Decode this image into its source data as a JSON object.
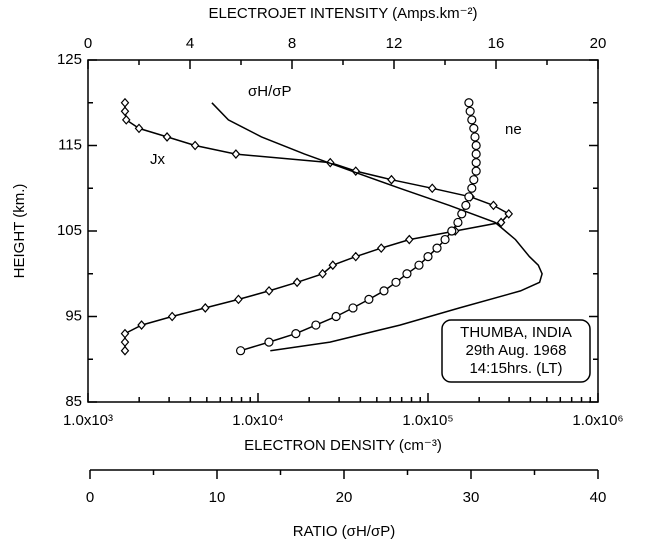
{
  "chart_data": {
    "type": "multi-axis-profile",
    "y_axis": {
      "label": "HEIGHT (km.)",
      "lim": [
        85,
        125
      ],
      "ticks": [
        85,
        95,
        105,
        115,
        125
      ],
      "minor_ticks": [
        90,
        100,
        110,
        120
      ]
    },
    "x_axes": {
      "top": {
        "label": "ELECTROJET INTENSITY (Amps.km⁻²)",
        "lim": [
          0,
          20
        ],
        "ticks": [
          0,
          4,
          8,
          12,
          16,
          20
        ],
        "minor_ticks": [
          2,
          6,
          10,
          14,
          18
        ]
      },
      "bottom": {
        "label": "ELECTRON DENSITY (cm⁻³)",
        "lim": [
          1000,
          1000000
        ],
        "log": true,
        "ticks": [
          {
            "value": 1000,
            "label": "1.0x10³"
          },
          {
            "value": 10000,
            "label": "1.0x10⁴"
          },
          {
            "value": 100000,
            "label": "1.0x10⁵"
          },
          {
            "value": 1000000,
            "label": "1.0x10⁶"
          }
        ],
        "minor_ticks": [
          2000,
          3000,
          4000,
          5000,
          6000,
          7000,
          8000,
          9000,
          20000,
          30000,
          40000,
          50000,
          60000,
          70000,
          80000,
          90000,
          200000,
          300000,
          400000,
          500000,
          600000,
          700000,
          800000,
          900000
        ]
      },
      "ratio": {
        "label": "RATIO (σH/σP)",
        "lim": [
          0,
          40
        ],
        "ticks": [
          0,
          10,
          20,
          30,
          40
        ],
        "minor_ticks": [
          5,
          15,
          25,
          35
        ]
      }
    },
    "series": [
      {
        "name": "Jx",
        "axis": "top",
        "marker": "diamond",
        "color": "#000000",
        "y": [
          120,
          119,
          118,
          117,
          116,
          115,
          114,
          113,
          112,
          111,
          110,
          109,
          108,
          107,
          106,
          105,
          104,
          103,
          102,
          101,
          100,
          99,
          98,
          97,
          96,
          95,
          94,
          93,
          92,
          91
        ],
        "values": [
          1.45,
          1.45,
          1.5,
          2.0,
          3.1,
          4.2,
          5.8,
          9.5,
          10.5,
          11.9,
          13.5,
          15.0,
          15.9,
          16.5,
          16.2,
          14.4,
          12.6,
          11.5,
          10.5,
          9.6,
          9.2,
          8.2,
          7.1,
          5.9,
          4.6,
          3.3,
          2.1,
          1.45,
          1.45,
          1.45
        ]
      },
      {
        "name": "ne",
        "axis": "bottom",
        "marker": "circle",
        "color": "#000000",
        "y": [
          120,
          119,
          118,
          117,
          116,
          115,
          114,
          113,
          112,
          111,
          110,
          109,
          108,
          107,
          106,
          105,
          104,
          103,
          102,
          101,
          100,
          99,
          98,
          97,
          96,
          95,
          94,
          93,
          92,
          91
        ],
        "values": [
          174000,
          177000,
          181000,
          186000,
          189000,
          192000,
          192000,
          192000,
          192000,
          186000,
          181000,
          174000,
          167000,
          158000,
          150000,
          138000,
          126000,
          113000,
          100000,
          88500,
          75200,
          64800,
          55100,
          44900,
          36200,
          28800,
          21900,
          16700,
          11600,
          7900
        ]
      },
      {
        "name": "σH/σP",
        "axis": "ratio",
        "marker": "none",
        "color": "#000000",
        "y": [
          120,
          118,
          116,
          114,
          112,
          110,
          108,
          106,
          104,
          102,
          101,
          100,
          99,
          98,
          96,
          94,
          92,
          91
        ],
        "values": [
          9.6,
          10.9,
          13.5,
          16.9,
          20.6,
          24.4,
          28.3,
          31.9,
          33.5,
          34.6,
          35.3,
          35.6,
          35.4,
          33.9,
          29.1,
          24.4,
          18.9,
          14.2
        ]
      }
    ],
    "annotations": [
      "THUMBA, INDIA",
      "29th Aug. 1968",
      "14:15hrs. (LT)"
    ]
  }
}
